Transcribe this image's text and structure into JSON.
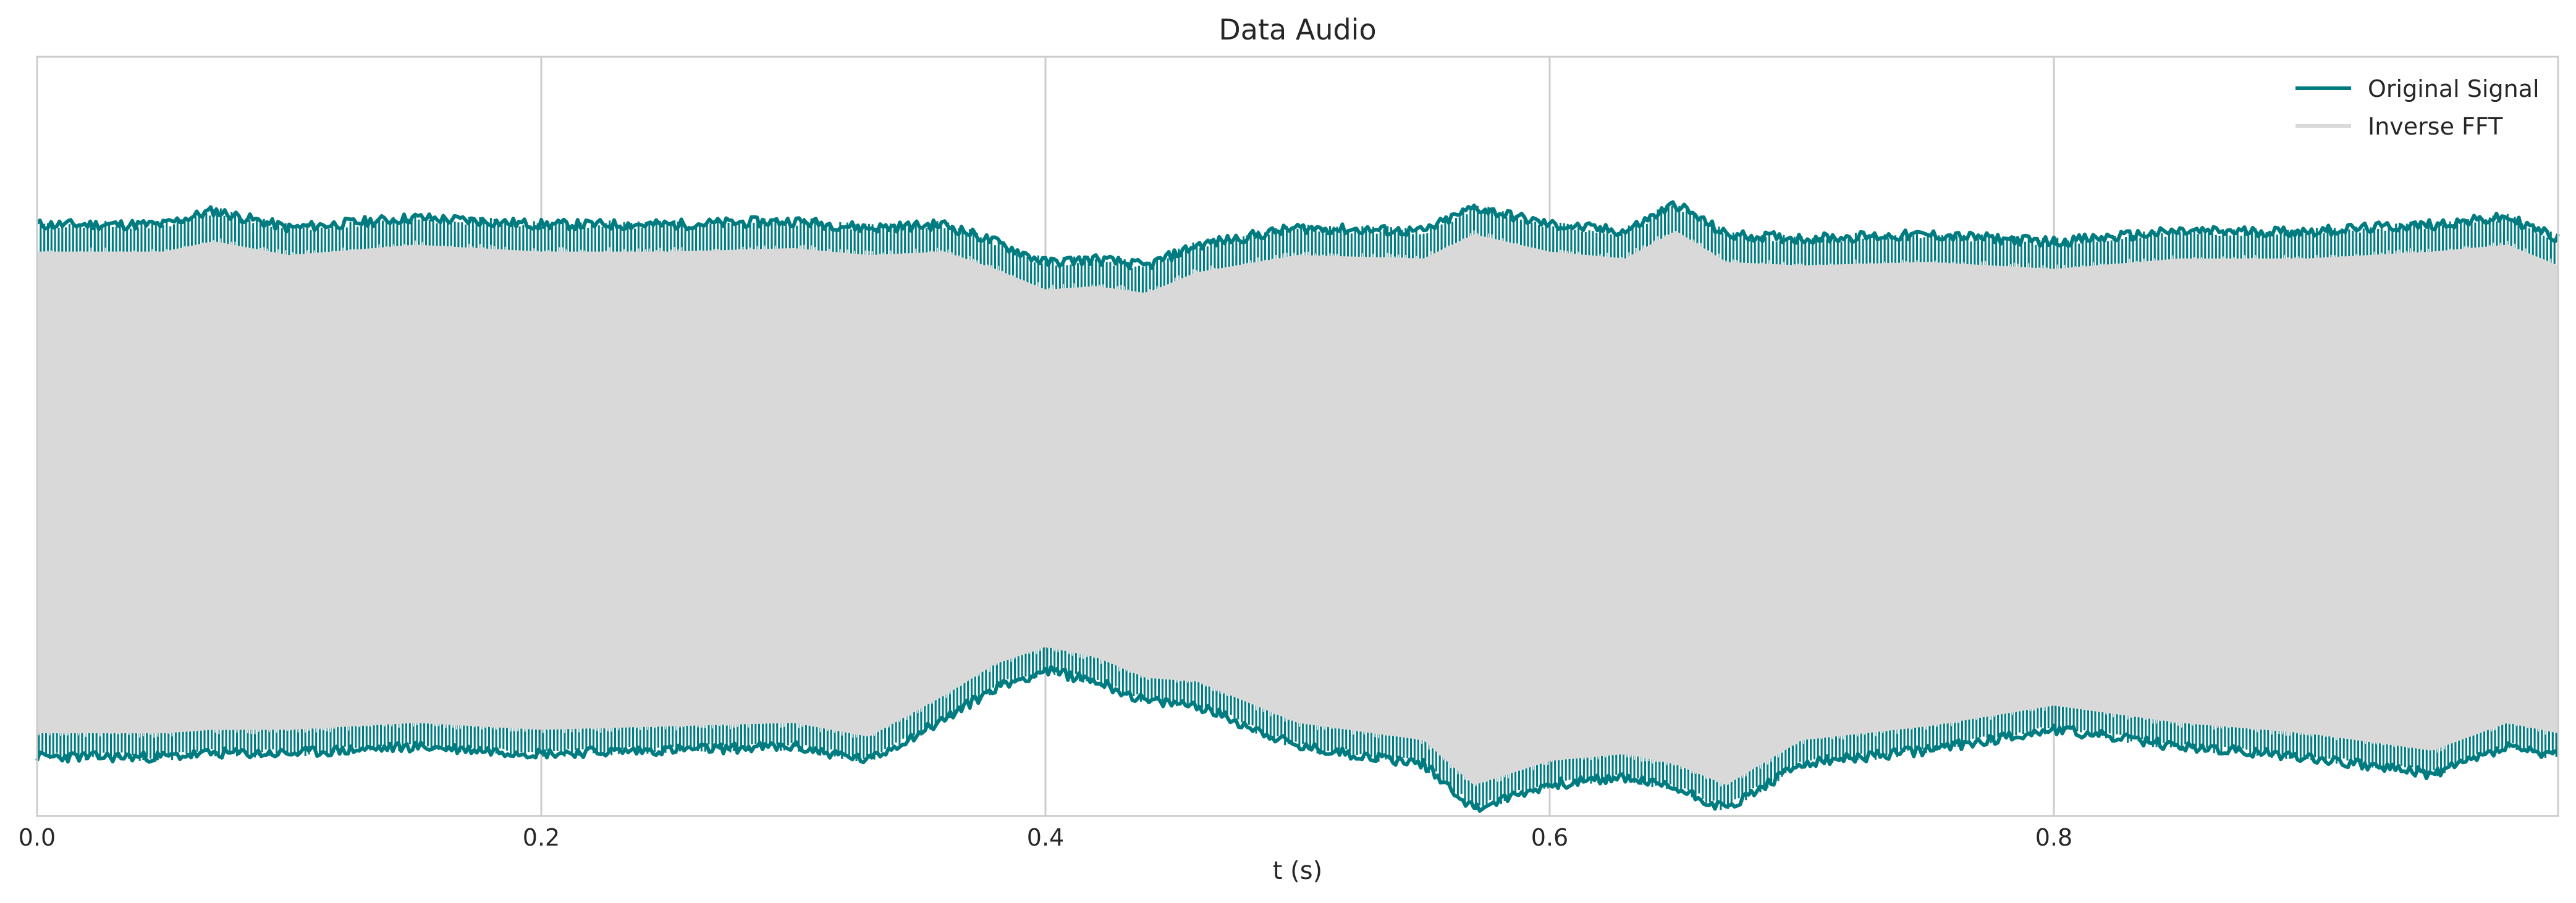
{
  "chart_data": {
    "type": "line",
    "title": "Data Audio",
    "xlabel": "t (s)",
    "ylabel": "",
    "xlim": [
      0.0,
      1.0
    ],
    "ylim": [
      -1.0,
      1.0
    ],
    "x_ticks": [
      "0.0",
      "0.2",
      "0.4",
      "0.6",
      "0.8"
    ],
    "grid": "vertical",
    "legend_position": "top-right",
    "series": [
      {
        "name": "Original Signal",
        "color": "#007c80",
        "envelope_t": [
          0.0,
          0.05,
          0.07,
          0.1,
          0.15,
          0.2,
          0.25,
          0.3,
          0.33,
          0.36,
          0.38,
          0.4,
          0.42,
          0.44,
          0.46,
          0.5,
          0.55,
          0.57,
          0.6,
          0.63,
          0.65,
          0.67,
          0.7,
          0.75,
          0.8,
          0.85,
          0.9,
          0.95,
          0.98,
          1.0
        ],
        "upper": [
          0.77,
          0.77,
          0.81,
          0.76,
          0.79,
          0.77,
          0.77,
          0.78,
          0.76,
          0.77,
          0.72,
          0.66,
          0.67,
          0.65,
          0.71,
          0.76,
          0.75,
          0.82,
          0.77,
          0.75,
          0.83,
          0.74,
          0.73,
          0.74,
          0.72,
          0.75,
          0.75,
          0.77,
          0.79,
          0.73
        ],
        "lower": [
          -0.77,
          -0.77,
          -0.76,
          -0.76,
          -0.74,
          -0.76,
          -0.75,
          -0.74,
          -0.78,
          -0.66,
          -0.57,
          -0.52,
          -0.55,
          -0.61,
          -0.62,
          -0.74,
          -0.79,
          -0.92,
          -0.85,
          -0.83,
          -0.86,
          -0.92,
          -0.79,
          -0.75,
          -0.69,
          -0.74,
          -0.77,
          -0.82,
          -0.74,
          -0.77
        ]
      },
      {
        "name": "Inverse FFT",
        "color": "#d9d9d9",
        "envelope_t": [
          0.0,
          0.05,
          0.07,
          0.1,
          0.15,
          0.2,
          0.25,
          0.3,
          0.33,
          0.36,
          0.38,
          0.4,
          0.42,
          0.44,
          0.46,
          0.5,
          0.55,
          0.57,
          0.6,
          0.63,
          0.65,
          0.67,
          0.7,
          0.75,
          0.8,
          0.85,
          0.9,
          0.95,
          0.98,
          1.0
        ],
        "upper": [
          0.69,
          0.69,
          0.72,
          0.68,
          0.71,
          0.69,
          0.69,
          0.7,
          0.68,
          0.69,
          0.64,
          0.58,
          0.59,
          0.57,
          0.63,
          0.68,
          0.67,
          0.74,
          0.69,
          0.67,
          0.75,
          0.66,
          0.65,
          0.66,
          0.64,
          0.67,
          0.67,
          0.69,
          0.71,
          0.65
        ],
        "lower": [
          -0.7,
          -0.7,
          -0.69,
          -0.69,
          -0.67,
          -0.69,
          -0.68,
          -0.67,
          -0.71,
          -0.59,
          -0.5,
          -0.45,
          -0.48,
          -0.54,
          -0.55,
          -0.67,
          -0.72,
          -0.85,
          -0.78,
          -0.76,
          -0.79,
          -0.85,
          -0.72,
          -0.68,
          -0.62,
          -0.67,
          -0.7,
          -0.75,
          -0.67,
          -0.7
        ]
      }
    ]
  },
  "colors": {
    "frame": "#cccccc",
    "grid": "#cccccc",
    "text": "#262626"
  }
}
